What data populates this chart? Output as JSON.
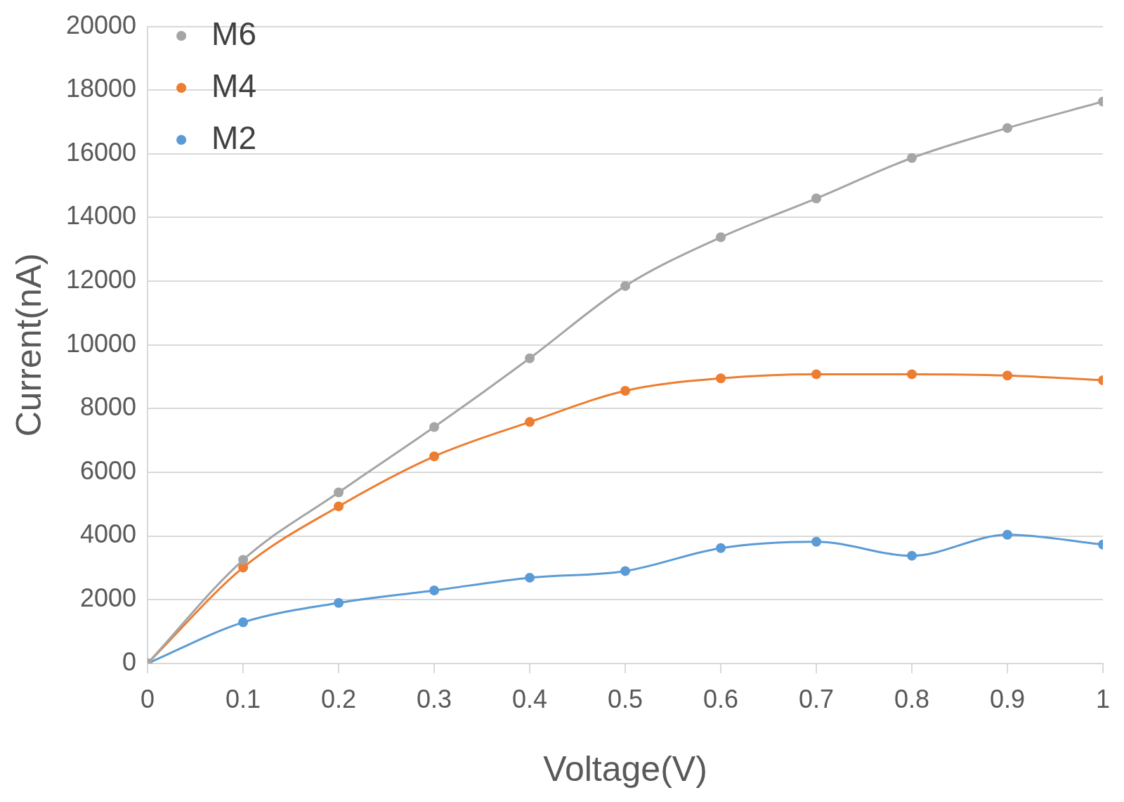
{
  "chart_data": {
    "type": "line",
    "xlabel": "Voltage(V)",
    "ylabel": "Current(nA)",
    "x": [
      0,
      0.1,
      0.2,
      0.3,
      0.4,
      0.5,
      0.6,
      0.7,
      0.8,
      0.9,
      1
    ],
    "xlim": [
      0,
      1
    ],
    "xticks": [
      0,
      0.1,
      0.2,
      0.3,
      0.4,
      0.5,
      0.6,
      0.7,
      0.8,
      0.9,
      1
    ],
    "ylim": [
      0,
      20000
    ],
    "yticks": [
      0,
      2000,
      4000,
      6000,
      8000,
      10000,
      12000,
      14000,
      16000,
      18000,
      20000
    ],
    "grid": "y",
    "legend": "top left",
    "marker": "circle",
    "line_style": "solid",
    "series": [
      {
        "name": "M6",
        "color": "#a5a5a5",
        "values": [
          0,
          3250,
          5370,
          7420,
          9580,
          11850,
          13380,
          14600,
          15870,
          16810,
          17640
        ]
      },
      {
        "name": "M4",
        "color": "#ed7d31",
        "values": [
          0,
          3010,
          4930,
          6500,
          7580,
          8560,
          8950,
          9080,
          9080,
          9040,
          8890
        ]
      },
      {
        "name": "M2",
        "color": "#5b9bd5",
        "values": [
          0,
          1290,
          1900,
          2290,
          2690,
          2900,
          3620,
          3820,
          3380,
          4040,
          3730
        ]
      }
    ]
  }
}
